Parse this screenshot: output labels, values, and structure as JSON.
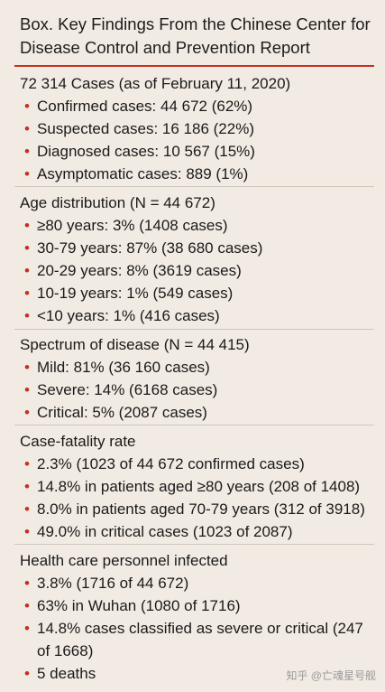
{
  "title": "Box. Key Findings From the Chinese Center for Disease Control and Prevention Report",
  "sections": [
    {
      "heading": "72 314 Cases (as of February 11, 2020)",
      "items": [
        "Confirmed cases: 44 672 (62%)",
        "Suspected cases: 16 186 (22%)",
        "Diagnosed cases: 10 567 (15%)",
        "Asymptomatic cases: 889 (1%)"
      ]
    },
    {
      "heading": "Age distribution (N = 44 672)",
      "items": [
        "≥80 years: 3% (1408 cases)",
        "30-79 years: 87% (38 680 cases)",
        "20-29 years: 8% (3619 cases)",
        "10-19 years: 1% (549 cases)",
        "<10 years: 1% (416 cases)"
      ]
    },
    {
      "heading": "Spectrum of disease (N = 44 415)",
      "items": [
        "Mild: 81% (36 160 cases)",
        "Severe: 14% (6168 cases)",
        "Critical: 5% (2087 cases)"
      ]
    },
    {
      "heading": "Case-fatality rate",
      "items": [
        "2.3% (1023 of 44 672 confirmed cases)",
        "14.8% in patients aged ≥80 years (208 of 1408)",
        "8.0% in patients aged 70-79 years (312 of 3918)",
        "49.0% in critical cases (1023 of 2087)"
      ]
    },
    {
      "heading": "Health care personnel infected",
      "items": [
        "3.8% (1716 of 44 672)",
        "63% in Wuhan (1080 of 1716)",
        "14.8% cases classified as severe or critical (247 of 1668)",
        "5 deaths"
      ]
    }
  ],
  "bullet": "•",
  "watermark": "知乎 @亡魂星号舰"
}
